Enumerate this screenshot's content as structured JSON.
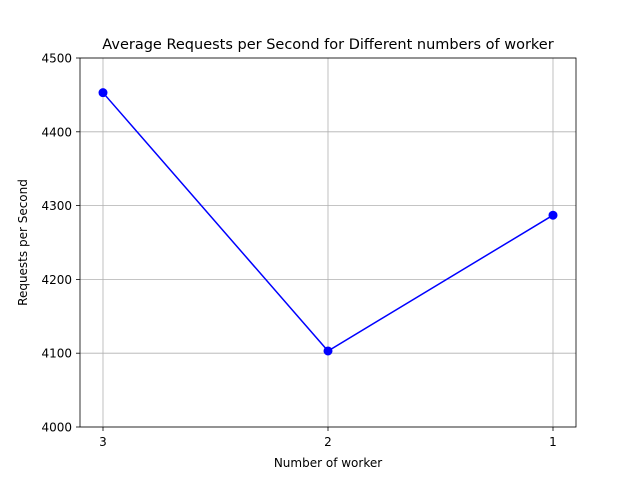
{
  "chart_data": {
    "type": "line",
    "title": "Average Requests per Second for Different numbers of worker",
    "xlabel": "Number of worker",
    "ylabel": "Requests per Second",
    "categories": [
      "3",
      "2",
      "1"
    ],
    "series": [
      {
        "values": [
          4453,
          4103,
          4287
        ],
        "color": "#0000ff",
        "marker": "circle"
      }
    ],
    "ylim": [
      4000,
      4500
    ],
    "yticks": [
      "4000",
      "4100",
      "4200",
      "4300",
      "4400",
      "4500"
    ],
    "grid": true
  }
}
